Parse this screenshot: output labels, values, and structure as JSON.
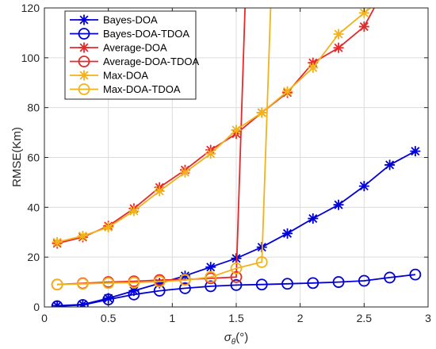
{
  "chart_data": {
    "type": "line",
    "xlabel": "σθ(°)",
    "xlabel_main": "σ",
    "xlabel_sub": "θ",
    "xlabel_unit": "(°)",
    "ylabel": "RMSE(Km)",
    "xlim": [
      0,
      3
    ],
    "ylim": [
      0,
      120
    ],
    "xticks": [
      "0",
      "0.5",
      "1",
      "1.5",
      "2",
      "2.5",
      "3"
    ],
    "xtick_values": [
      0,
      0.5,
      1,
      1.5,
      2,
      2.5,
      3
    ],
    "yticks": [
      "0",
      "20",
      "40",
      "60",
      "80",
      "100",
      "120"
    ],
    "ytick_values": [
      0,
      20,
      40,
      60,
      80,
      100,
      120
    ],
    "grid": true,
    "legend_position": "top-left",
    "series": [
      {
        "name": "Bayes-DOA",
        "color": "#0000d8",
        "marker": "asterisk",
        "x": [
          0.1,
          0.3,
          0.5,
          0.7,
          0.9,
          1.1,
          1.3,
          1.5,
          1.7,
          1.9,
          2.1,
          2.3,
          2.5,
          2.7,
          2.9
        ],
        "y": [
          0.5,
          1.0,
          3.5,
          6.5,
          9.5,
          12.5,
          16.0,
          19.5,
          24.0,
          29.5,
          35.5,
          41.0,
          48.5,
          57.0,
          62.5
        ]
      },
      {
        "name": "Bayes-DOA-TDOA",
        "color": "#0000d8",
        "marker": "circle",
        "x": [
          0.1,
          0.3,
          0.5,
          0.7,
          0.9,
          1.1,
          1.3,
          1.5,
          1.7,
          1.9,
          2.1,
          2.3,
          2.5,
          2.7,
          2.9
        ],
        "y": [
          0.3,
          0.8,
          3.0,
          5.0,
          6.5,
          7.5,
          8.3,
          8.8,
          9.0,
          9.3,
          9.6,
          10.0,
          10.5,
          11.8,
          13.0
        ]
      },
      {
        "name": "Average-DOA",
        "color": "#e82828",
        "marker": "asterisk",
        "x": [
          0.1,
          0.3,
          0.5,
          0.7,
          0.9,
          1.1,
          1.3,
          1.5,
          1.7,
          1.9,
          2.1,
          2.3,
          2.5,
          2.6
        ],
        "y": [
          25.5,
          28.0,
          32.5,
          39.5,
          48.0,
          55.0,
          63.0,
          69.5,
          78.0,
          86.0,
          98.0,
          104.0,
          112.5,
          122.0
        ]
      },
      {
        "name": "Average-DOA-TDOA",
        "color": "#e82828",
        "marker": "circle",
        "x": [
          0.1,
          0.3,
          0.5,
          0.7,
          0.9,
          1.1,
          1.3,
          1.5,
          1.57
        ],
        "y": [
          9.0,
          9.5,
          10.0,
          10.3,
          10.8,
          11.0,
          11.5,
          12.0,
          122.0
        ]
      },
      {
        "name": "Max-DOA",
        "color": "#f2b21a",
        "marker": "asterisk",
        "x": [
          0.1,
          0.3,
          0.5,
          0.7,
          0.9,
          1.1,
          1.3,
          1.5,
          1.7,
          1.9,
          2.1,
          2.3,
          2.5,
          2.6
        ],
        "y": [
          26.0,
          28.5,
          32.0,
          38.5,
          46.5,
          54.0,
          61.5,
          71.0,
          78.0,
          86.5,
          96.0,
          109.5,
          118.0,
          122.0
        ]
      },
      {
        "name": "Max-DOA-TDOA",
        "color": "#f2b21a",
        "marker": "circle",
        "x": [
          0.1,
          0.3,
          0.5,
          0.7,
          0.9,
          1.1,
          1.3,
          1.5,
          1.7,
          1.77
        ],
        "y": [
          9.0,
          9.3,
          9.6,
          9.8,
          10.2,
          10.8,
          12.0,
          15.5,
          18.0,
          122.0
        ]
      }
    ]
  }
}
